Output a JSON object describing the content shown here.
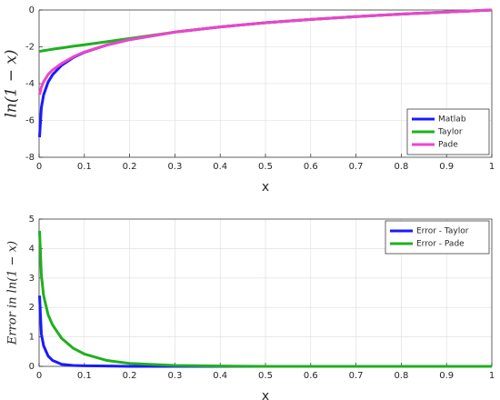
{
  "chart_data": [
    {
      "type": "line",
      "xlabel": "x",
      "ylabel": "ln(1 − x)",
      "x": [
        0.001,
        0.005,
        0.01,
        0.02,
        0.03,
        0.05,
        0.075,
        0.1,
        0.15,
        0.2,
        0.3,
        0.4,
        0.5,
        0.6,
        0.7,
        0.8,
        0.9,
        1.0
      ],
      "series": [
        {
          "name": "Matlab",
          "color": "#1a1aff",
          "values": [
            -6.91,
            -5.3,
            -4.61,
            -3.91,
            -3.51,
            -3.0,
            -2.59,
            -2.3,
            -1.9,
            -1.61,
            -1.2,
            -0.92,
            -0.69,
            -0.51,
            -0.36,
            -0.22,
            -0.11,
            0
          ]
        },
        {
          "name": "Taylor",
          "color": "#1fb01f",
          "values": [
            -2.25,
            -2.23,
            -2.21,
            -2.17,
            -2.13,
            -2.06,
            -1.97,
            -1.89,
            -1.72,
            -1.55,
            -1.2,
            -0.92,
            -0.69,
            -0.51,
            -0.36,
            -0.22,
            -0.11,
            0
          ]
        },
        {
          "name": "Pade",
          "color": "#ee44cc",
          "values": [
            -4.6,
            -4.2,
            -3.9,
            -3.5,
            -3.25,
            -2.9,
            -2.55,
            -2.28,
            -1.9,
            -1.61,
            -1.2,
            -0.92,
            -0.69,
            -0.51,
            -0.36,
            -0.22,
            -0.11,
            0
          ]
        }
      ],
      "xlim": [
        0,
        1
      ],
      "xticks": [
        0,
        0.1,
        0.2,
        0.3,
        0.4,
        0.5,
        0.6,
        0.7,
        0.8,
        0.9,
        1
      ],
      "ylim": [
        -8,
        0
      ],
      "yticks": [
        -8,
        -6,
        -4,
        -2,
        0
      ],
      "grid": true,
      "legend": "lower right"
    },
    {
      "type": "line",
      "xlabel": "x",
      "ylabel": "Error in ln(1 − x)",
      "x": [
        0.001,
        0.005,
        0.01,
        0.02,
        0.03,
        0.05,
        0.075,
        0.1,
        0.15,
        0.2,
        0.3,
        0.4,
        0.5,
        0.6,
        0.7,
        0.8,
        0.9,
        1.0
      ],
      "series": [
        {
          "name": "Error - Taylor",
          "color": "#1a1aff",
          "values": [
            2.4,
            1.1,
            0.7,
            0.35,
            0.2,
            0.07,
            0.03,
            0.02,
            0.01,
            0,
            0,
            0,
            0,
            0,
            0,
            0,
            0,
            0
          ]
        },
        {
          "name": "Error - Pade",
          "color": "#1fb01f",
          "values": [
            4.6,
            3.1,
            2.4,
            1.75,
            1.4,
            0.95,
            0.62,
            0.42,
            0.2,
            0.1,
            0.03,
            0.01,
            0,
            0,
            0,
            0,
            0,
            0
          ]
        }
      ],
      "xlim": [
        0,
        1
      ],
      "xticks": [
        0,
        0.1,
        0.2,
        0.3,
        0.4,
        0.5,
        0.6,
        0.7,
        0.8,
        0.9,
        1
      ],
      "ylim": [
        0,
        5
      ],
      "yticks": [
        0,
        1,
        2,
        3,
        4,
        5
      ],
      "grid": true,
      "legend": "upper right"
    }
  ]
}
